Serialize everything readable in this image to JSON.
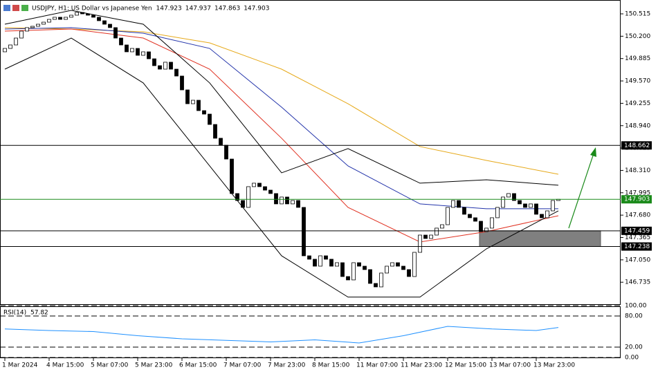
{
  "chart_data": {
    "type": "candlestick",
    "title": "USDJPY, H1:  US Dollar vs Japanese Yen",
    "quote": [
      147.923,
      147.937,
      147.863,
      147.903
    ],
    "ylim": [
      146.425,
      150.71
    ],
    "yticks": [
      150.515,
      {
        "value": 150.2,
        "label": "150.200"
      },
      149.885,
      {
        "value": 149.57,
        "label": "149.570"
      },
      149.255,
      {
        "value": 148.94,
        "label": "148.940"
      },
      148.625,
      {
        "value": 148.31,
        "label": "148.310"
      },
      147.995,
      {
        "value": 147.68,
        "label": "147.680"
      },
      147.365,
      {
        "value": 147.05,
        "label": "147.050"
      },
      146.735
    ],
    "xticks": [
      {
        "value": 0,
        "label": "1 Mar 2024"
      },
      {
        "value": 8,
        "label": "4 Mar 15:00"
      },
      {
        "value": 16,
        "label": "5 Mar 07:00"
      },
      {
        "value": 24,
        "label": "5 Mar 23:00"
      },
      {
        "value": 32,
        "label": "6 Mar 15:00"
      },
      {
        "value": 40,
        "label": "7 Mar 07:00"
      },
      {
        "value": 48,
        "label": "7 Mar 23:00"
      },
      {
        "value": 56,
        "label": "8 Mar 15:00"
      },
      {
        "value": 64,
        "label": "11 Mar 07:00"
      },
      {
        "value": 72,
        "label": "11 Mar 23:00"
      },
      {
        "value": 80,
        "label": "12 Mar 15:00"
      },
      {
        "value": 88,
        "label": "13 Mar 07:00"
      },
      {
        "value": 96,
        "label": "13 Mar 23:00"
      }
    ],
    "candles": {
      "open": [
        149.98,
        150.028,
        150.077,
        150.174,
        150.272,
        150.321,
        150.34,
        150.369,
        150.398,
        150.437,
        150.467,
        150.437,
        150.467,
        150.496,
        150.535,
        150.515,
        150.496,
        150.467,
        150.418,
        150.369,
        150.321,
        150.174,
        150.077,
        149.98,
        150.028,
        149.931,
        149.98,
        149.882,
        149.785,
        149.736,
        149.834,
        149.736,
        149.639,
        149.444,
        149.249,
        149.298,
        149.152,
        149.103,
        148.957,
        148.763,
        148.665,
        148.47,
        147.984,
        147.886,
        147.789,
        148.081,
        148.13,
        148.081,
        148.032,
        147.984,
        147.838,
        147.935,
        147.838,
        147.886,
        147.789,
        147.107,
        147.059,
        146.961,
        147.107,
        147.059,
        146.961,
        147.01,
        146.815,
        146.767,
        147.01,
        146.961,
        146.913,
        146.718,
        146.669,
        146.864,
        146.961,
        147.01,
        146.961,
        146.913,
        146.815,
        147.156,
        147.399,
        147.351,
        147.399,
        147.497,
        147.545,
        147.789,
        147.886,
        147.789,
        147.692,
        147.643,
        147.594,
        147.448,
        147.497,
        147.643,
        147.789,
        147.935,
        147.984,
        147.886,
        147.838,
        147.789,
        147.838,
        147.692,
        147.643,
        147.74,
        147.886
      ],
      "close": [
        150.028,
        150.077,
        150.174,
        150.272,
        150.321,
        150.34,
        150.369,
        150.398,
        150.437,
        150.467,
        150.437,
        150.467,
        150.496,
        150.535,
        150.515,
        150.496,
        150.467,
        150.418,
        150.369,
        150.321,
        150.174,
        150.077,
        149.98,
        150.028,
        149.931,
        149.98,
        149.882,
        149.785,
        149.736,
        149.834,
        149.736,
        149.639,
        149.444,
        149.249,
        149.298,
        149.152,
        149.103,
        148.957,
        148.763,
        148.665,
        148.47,
        147.984,
        147.886,
        147.789,
        148.081,
        148.13,
        148.081,
        148.032,
        147.984,
        147.838,
        147.935,
        147.838,
        147.886,
        147.789,
        147.107,
        147.059,
        146.961,
        147.107,
        147.059,
        146.961,
        147.01,
        146.815,
        146.767,
        147.01,
        146.961,
        146.913,
        146.718,
        146.669,
        146.864,
        146.961,
        147.01,
        146.961,
        146.913,
        146.815,
        147.156,
        147.399,
        147.351,
        147.399,
        147.497,
        147.545,
        147.789,
        147.886,
        147.789,
        147.692,
        147.643,
        147.594,
        147.448,
        147.497,
        147.643,
        147.789,
        147.935,
        147.984,
        147.886,
        147.838,
        147.789,
        147.838,
        147.692,
        147.643,
        147.74,
        147.886,
        147.903
      ]
    },
    "indicators": [
      {
        "color": "#e6a817",
        "x": [
          0,
          12,
          25,
          37,
          50,
          62,
          75,
          87,
          100
        ],
        "values": [
          150.321,
          150.301,
          150.262,
          150.106,
          149.736,
          149.249,
          148.646,
          148.451,
          148.256
        ]
      },
      {
        "color": "#2233aa",
        "x": [
          0,
          12,
          25,
          37,
          50,
          62,
          75,
          87,
          100
        ],
        "values": [
          150.301,
          150.321,
          150.243,
          150.028,
          149.201,
          148.373,
          147.838,
          147.77,
          147.77
        ]
      },
      {
        "color": "#e03020",
        "x": [
          0,
          12,
          25,
          37,
          50,
          62,
          75,
          87,
          100
        ],
        "values": [
          150.272,
          150.301,
          150.174,
          149.736,
          148.763,
          147.789,
          147.302,
          147.448,
          147.672
        ]
      },
      {
        "color": "#000000",
        "x": [
          0,
          12,
          25,
          37,
          50,
          62,
          75,
          87,
          100
        ],
        "values": [
          150.369,
          150.564,
          150.369,
          149.542,
          148.276,
          148.617,
          148.13,
          148.178,
          148.101
        ]
      },
      {
        "color": "#000000",
        "x": [
          0,
          12,
          25,
          37,
          50,
          62,
          75,
          87,
          100
        ],
        "values": [
          149.736,
          150.174,
          149.542,
          148.373,
          147.107,
          146.526,
          146.526,
          147.205,
          147.74
        ]
      }
    ],
    "levels": [
      {
        "value": 148.662,
        "color": "#000000"
      },
      {
        "value": 147.903,
        "color": "#1a8a1a"
      },
      {
        "value": 147.459,
        "color": "#000000"
      },
      {
        "value": 147.238,
        "color": "#000000"
      }
    ],
    "rsi": {
      "label": "RSI(14)",
      "value": 57.82,
      "color": "#1e90ff",
      "ylim": [
        0,
        100
      ],
      "yticks": [
        {
          "value": 100,
          "label": "100.00"
        },
        {
          "value": 80,
          "label": "80.00"
        },
        {
          "value": 20,
          "label": "20.00"
        },
        {
          "value": 0,
          "label": "0.00"
        }
      ],
      "x": [
        0,
        8,
        16,
        24,
        32,
        40,
        48,
        56,
        64,
        72,
        80,
        88,
        96,
        100
      ],
      "values": [
        55,
        52,
        50,
        42,
        36,
        33,
        30,
        34,
        28,
        42,
        60,
        55,
        52,
        57.82
      ]
    }
  }
}
